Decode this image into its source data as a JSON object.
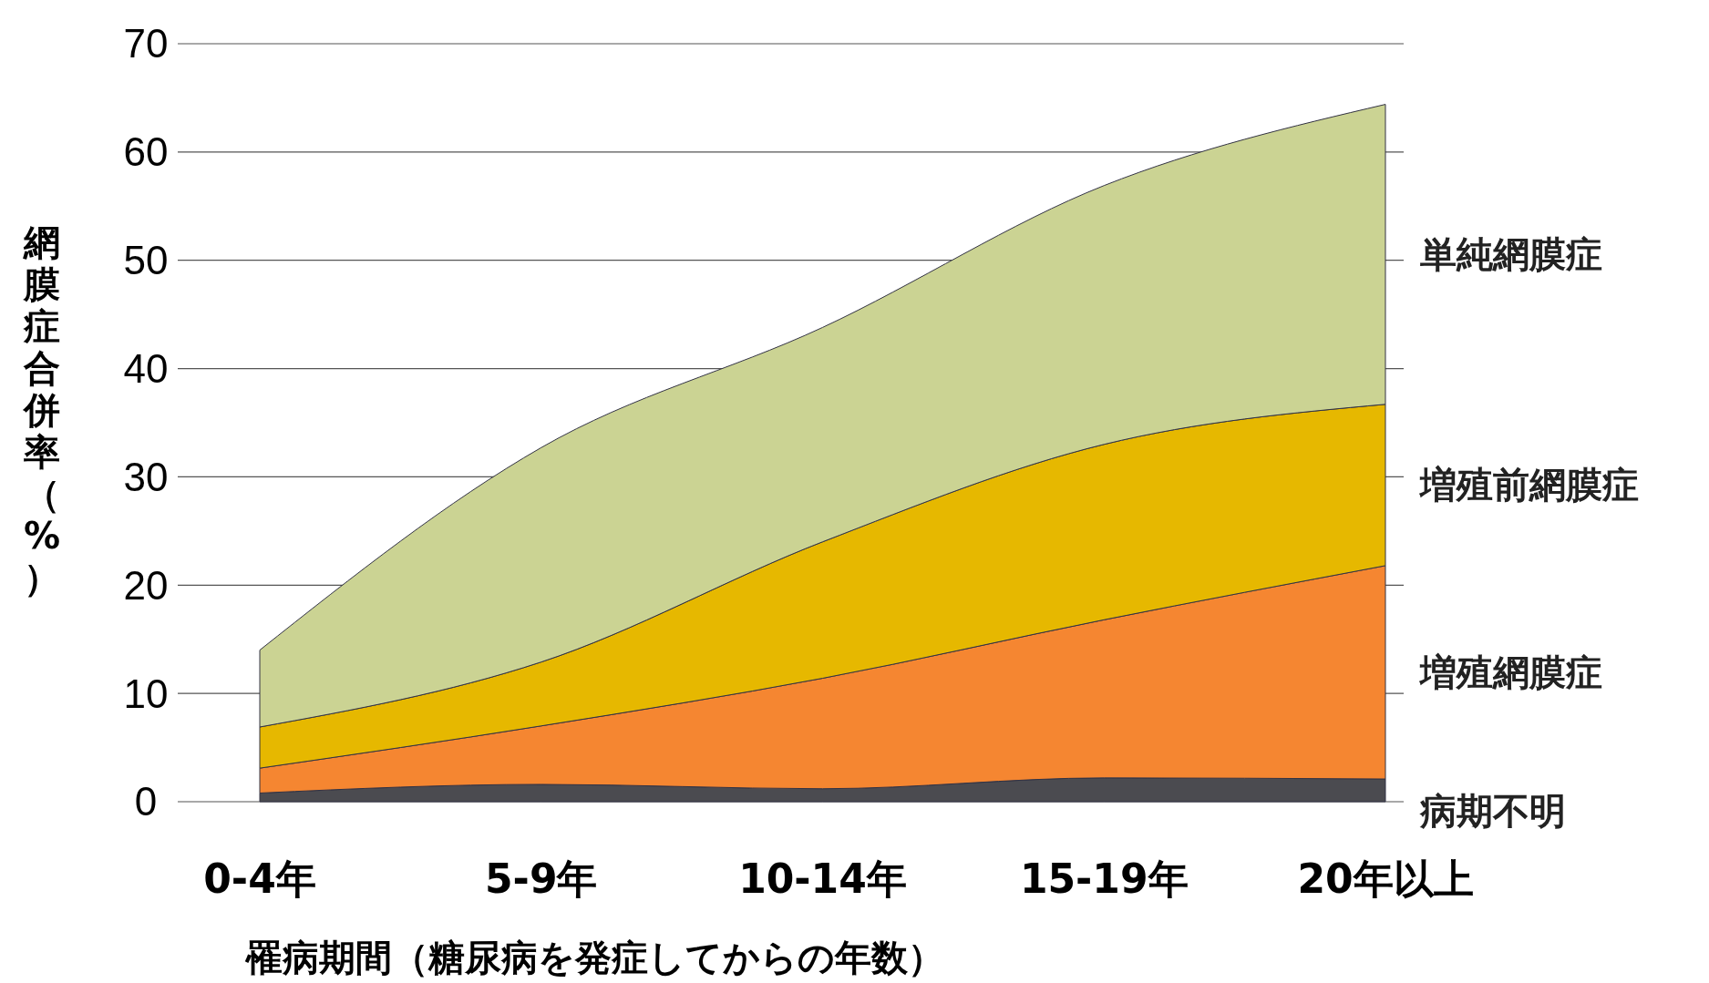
{
  "chart_data": {
    "type": "area",
    "stacked": true,
    "xlabel": "罹病期間（糖尿病を発症してからの年数）",
    "ylabel": "網膜症合併率（%）",
    "categories": [
      "0-4年",
      "5-9年",
      "10-14年",
      "15-19年",
      "20年以上"
    ],
    "ylim": [
      0,
      70
    ],
    "yticks": [
      0,
      10,
      20,
      30,
      40,
      50,
      60,
      70
    ],
    "grid": "y",
    "legend": "right",
    "series": [
      {
        "name": "病期不明",
        "color": "#4b4b50",
        "values": [
          0.8,
          1.6,
          1.2,
          2.2,
          2.1
        ]
      },
      {
        "name": "増殖網膜症",
        "color": "#f58631",
        "values": [
          2.3,
          5.4,
          10.2,
          14.6,
          19.7
        ]
      },
      {
        "name": "増殖前網膜症",
        "color": "#e6b800",
        "values": [
          3.8,
          5.9,
          12.6,
          16.2,
          14.9
        ]
      },
      {
        "name": "単純網膜症",
        "color": "#cbd393",
        "values": [
          7.1,
          19.8,
          19.8,
          23.9,
          27.7
        ]
      }
    ]
  }
}
